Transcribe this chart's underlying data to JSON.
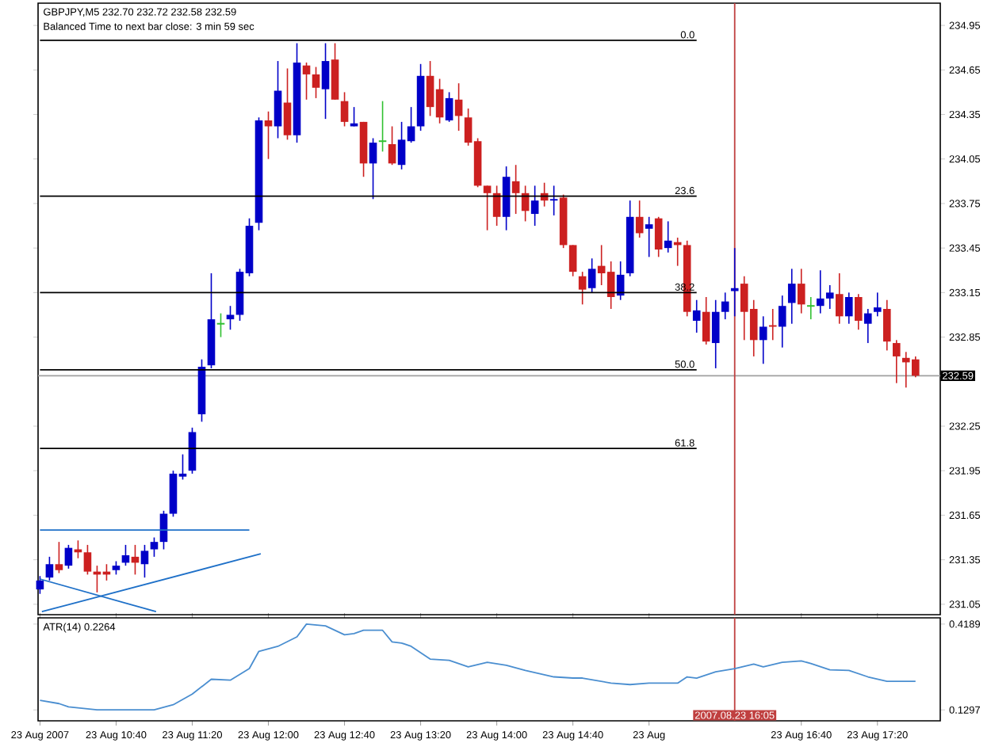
{
  "chart_data": [
    {
      "type": "candlestick",
      "title": "GBPJPY,M5  232.70 232.72 232.58 232.59",
      "subtitle": "Balanced Time to next bar close: 3 min 59 sec",
      "xlim": [
        "2007-08-23T09:59",
        "2007-08-23T17:53"
      ],
      "ylim": [
        230.98,
        235.1
      ],
      "yticks": [
        234.95,
        234.65,
        234.35,
        234.05,
        233.75,
        233.45,
        233.15,
        232.85,
        232.25,
        231.95,
        231.65,
        231.35,
        231.05
      ],
      "tick_labels": "y",
      "series": [
        {
          "color": "#0000c8",
          "x": [
            "2007-08-23T10:00",
            "2007-08-23T10:05",
            "2007-08-23T10:15",
            "2007-08-23T10:40",
            "2007-08-23T10:45",
            "2007-08-23T10:55",
            "2007-08-23T11:00",
            "2007-08-23T11:05",
            "2007-08-23T11:10",
            "2007-08-23T11:15",
            "2007-08-23T11:20",
            "2007-08-23T11:25",
            "2007-08-23T11:30",
            "2007-08-23T11:40",
            "2007-08-23T11:45",
            "2007-08-23T11:50",
            "2007-08-23T11:55",
            "2007-08-23T12:05",
            "2007-08-23T12:15",
            "2007-08-23T12:30",
            "2007-08-23T12:45",
            "2007-08-23T12:55",
            "2007-08-23T13:10",
            "2007-08-23T13:15",
            "2007-08-23T13:20",
            "2007-08-23T13:35",
            "2007-08-23T14:05",
            "2007-08-23T14:20",
            "2007-08-23T14:30",
            "2007-08-23T14:50",
            "2007-08-23T15:05",
            "2007-08-23T15:10",
            "2007-08-23T15:20",
            "2007-08-23T15:30",
            "2007-08-23T15:45",
            "2007-08-23T15:55",
            "2007-08-23T16:00",
            "2007-08-23T16:05",
            "2007-08-23T16:20",
            "2007-08-23T16:30",
            "2007-08-23T16:35",
            "2007-08-23T16:50",
            "2007-08-23T16:55",
            "2007-08-23T17:05",
            "2007-08-23T17:15",
            "2007-08-23T17:20"
          ],
          "ohlc": [
            [
              231.15,
              231.24,
              231.12,
              231.21
            ],
            [
              231.23,
              231.37,
              231.21,
              231.32
            ],
            [
              231.31,
              231.45,
              231.29,
              231.43
            ],
            [
              231.28,
              231.34,
              231.25,
              231.31
            ],
            [
              231.33,
              231.45,
              231.31,
              231.38
            ],
            [
              231.32,
              231.45,
              231.23,
              231.41
            ],
            [
              231.42,
              231.5,
              231.37,
              231.47
            ],
            [
              231.47,
              231.68,
              231.42,
              231.66
            ],
            [
              231.66,
              231.95,
              231.64,
              231.93
            ],
            [
              231.91,
              232.06,
              231.89,
              231.93
            ],
            [
              231.95,
              232.24,
              231.93,
              232.21
            ],
            [
              232.33,
              232.7,
              232.28,
              232.65
            ],
            [
              232.66,
              233.28,
              232.64,
              232.97
            ],
            [
              232.97,
              233.06,
              232.9,
              233.0
            ],
            [
              233.0,
              233.31,
              232.96,
              233.29
            ],
            [
              233.28,
              233.65,
              233.26,
              233.6
            ],
            [
              233.62,
              234.33,
              233.57,
              234.31
            ],
            [
              234.27,
              234.71,
              234.19,
              234.51
            ],
            [
              234.21,
              234.83,
              234.16,
              234.7
            ],
            [
              234.52,
              234.83,
              234.32,
              234.71
            ],
            [
              234.27,
              234.4,
              234.27,
              234.29
            ],
            [
              234.02,
              234.19,
              233.78,
              234.16
            ],
            [
              234.01,
              234.3,
              233.98,
              234.18
            ],
            [
              234.17,
              234.4,
              234.16,
              234.27
            ],
            [
              234.27,
              234.69,
              234.24,
              234.61
            ],
            [
              234.31,
              234.5,
              234.3,
              234.46
            ],
            [
              233.66,
              234.0,
              233.57,
              233.93
            ],
            [
              233.68,
              233.87,
              233.6,
              233.77
            ],
            [
              233.77,
              233.87,
              233.67,
              233.78
            ],
            [
              233.18,
              233.38,
              233.15,
              233.31
            ],
            [
              233.13,
              233.36,
              233.1,
              233.27
            ],
            [
              233.28,
              233.77,
              233.26,
              233.66
            ],
            [
              233.58,
              233.66,
              233.39,
              233.61
            ],
            [
              233.45,
              233.63,
              233.42,
              233.5
            ],
            [
              232.96,
              233.1,
              232.88,
              233.03
            ],
            [
              232.81,
              233.1,
              232.64,
              233.02
            ],
            [
              233.02,
              233.15,
              232.97,
              233.09
            ],
            [
              233.16,
              233.45,
              232.99,
              233.18
            ],
            [
              232.83,
              232.99,
              232.67,
              232.92
            ],
            [
              232.92,
              233.13,
              232.78,
              233.06
            ],
            [
              233.08,
              233.31,
              232.94,
              233.21
            ],
            [
              233.06,
              233.3,
              233.01,
              233.11
            ],
            [
              233.11,
              233.2,
              233.04,
              233.15
            ],
            [
              232.99,
              233.15,
              232.94,
              233.12
            ],
            [
              232.94,
              233.04,
              232.81,
              233.01
            ],
            [
              233.02,
              233.15,
              232.99,
              233.05
            ]
          ]
        },
        {
          "color": "#cc2020",
          "x": [
            "2007-08-23T10:10",
            "2007-08-23T10:20",
            "2007-08-23T10:25",
            "2007-08-23T10:30",
            "2007-08-23T10:35",
            "2007-08-23T10:50",
            "2007-08-23T12:00",
            "2007-08-23T12:10",
            "2007-08-23T12:20",
            "2007-08-23T12:25",
            "2007-08-23T12:35",
            "2007-08-23T12:40",
            "2007-08-23T12:50",
            "2007-08-23T13:05",
            "2007-08-23T13:25",
            "2007-08-23T13:30",
            "2007-08-23T13:40",
            "2007-08-23T13:45",
            "2007-08-23T13:50",
            "2007-08-23T13:55",
            "2007-08-23T14:00",
            "2007-08-23T14:10",
            "2007-08-23T14:15",
            "2007-08-23T14:25",
            "2007-08-23T14:35",
            "2007-08-23T14:40",
            "2007-08-23T14:45",
            "2007-08-23T14:55",
            "2007-08-23T15:00",
            "2007-08-23T15:15",
            "2007-08-23T15:25",
            "2007-08-23T15:35",
            "2007-08-23T15:40",
            "2007-08-23T15:50",
            "2007-08-23T16:10",
            "2007-08-23T16:15",
            "2007-08-23T16:25",
            "2007-08-23T16:40",
            "2007-08-23T17:00",
            "2007-08-23T17:10",
            "2007-08-23T17:25",
            "2007-08-23T17:30",
            "2007-08-23T17:35",
            "2007-08-23T17:40"
          ],
          "ohlc": [
            [
              231.32,
              231.47,
              231.26,
              231.28
            ],
            [
              231.42,
              231.48,
              231.36,
              231.4
            ],
            [
              231.4,
              231.45,
              231.25,
              231.27
            ],
            [
              231.27,
              231.31,
              231.13,
              231.25
            ],
            [
              231.27,
              231.32,
              231.21,
              231.25
            ],
            [
              231.37,
              231.45,
              231.25,
              231.33
            ],
            [
              234.31,
              234.37,
              234.05,
              234.27
            ],
            [
              234.43,
              234.66,
              234.18,
              234.21
            ],
            [
              234.68,
              234.7,
              234.45,
              234.62
            ],
            [
              234.62,
              234.67,
              234.46,
              234.53
            ],
            [
              234.72,
              234.83,
              234.45,
              234.45
            ],
            [
              234.44,
              234.5,
              234.27,
              234.3
            ],
            [
              234.3,
              234.3,
              233.93,
              234.02
            ],
            [
              234.15,
              234.27,
              234.01,
              234.02
            ],
            [
              234.61,
              234.71,
              234.34,
              234.4
            ],
            [
              234.52,
              234.59,
              234.29,
              234.33
            ],
            [
              234.45,
              234.56,
              234.24,
              234.34
            ],
            [
              234.33,
              234.39,
              234.14,
              234.16
            ],
            [
              234.17,
              234.19,
              233.86,
              233.87
            ],
            [
              233.87,
              233.87,
              233.57,
              233.82
            ],
            [
              233.82,
              233.87,
              233.6,
              233.66
            ],
            [
              233.9,
              234.01,
              233.68,
              233.82
            ],
            [
              233.82,
              233.87,
              233.63,
              233.7
            ],
            [
              233.82,
              233.89,
              233.73,
              233.77
            ],
            [
              233.79,
              233.81,
              233.45,
              233.47
            ],
            [
              233.47,
              233.47,
              233.26,
              233.29
            ],
            [
              233.26,
              233.29,
              233.07,
              233.17
            ],
            [
              233.33,
              233.47,
              233.2,
              233.28
            ],
            [
              233.29,
              233.36,
              233.04,
              233.12
            ],
            [
              233.66,
              233.77,
              233.52,
              233.55
            ],
            [
              233.65,
              233.66,
              233.39,
              233.44
            ],
            [
              233.49,
              233.52,
              233.33,
              233.47
            ],
            [
              233.47,
              233.5,
              232.99,
              233.02
            ],
            [
              233.02,
              233.12,
              232.8,
              232.82
            ],
            [
              233.21,
              233.26,
              232.83,
              233.02
            ],
            [
              233.04,
              233.1,
              232.72,
              232.83
            ],
            [
              232.93,
              233.04,
              232.83,
              232.92
            ],
            [
              233.21,
              233.31,
              233.01,
              233.07
            ],
            [
              233.14,
              233.28,
              232.94,
              232.99
            ],
            [
              233.12,
              233.14,
              232.9,
              232.96
            ],
            [
              233.04,
              233.1,
              232.76,
              232.82
            ],
            [
              232.81,
              232.83,
              232.54,
              232.72
            ],
            [
              232.71,
              232.75,
              232.51,
              232.68
            ],
            [
              232.7,
              232.72,
              232.58,
              232.59
            ]
          ]
        },
        {
          "color": "#30c030",
          "x": [
            "2007-08-23T11:35",
            "2007-08-23T13:00",
            "2007-08-23T16:45"
          ],
          "ohlc": [
            [
              232.94,
              233.01,
              232.85,
              232.94
            ],
            [
              234.17,
              234.44,
              234.1,
              234.17
            ],
            [
              233.06,
              233.12,
              232.97,
              233.06
            ]
          ]
        },
        {
          "type": "line",
          "color": "#000000",
          "x": [
            "2007-08-23T10:00",
            "2007-08-23T15:45"
          ],
          "values": [
            234.85,
            234.85
          ]
        },
        {
          "type": "line",
          "color": "#000000",
          "x": [
            "2007-08-23T10:00",
            "2007-08-23T15:45"
          ],
          "values": [
            233.8,
            233.8
          ]
        },
        {
          "type": "line",
          "color": "#000000",
          "x": [
            "2007-08-23T10:00",
            "2007-08-23T15:45"
          ],
          "values": [
            233.15,
            233.15
          ]
        },
        {
          "type": "line",
          "color": "#000000",
          "x": [
            "2007-08-23T10:00",
            "2007-08-23T15:45"
          ],
          "values": [
            232.63,
            232.63
          ]
        },
        {
          "type": "line",
          "color": "#000000",
          "x": [
            "2007-08-23T10:00",
            "2007-08-23T15:45"
          ],
          "values": [
            232.1,
            232.1
          ]
        },
        {
          "type": "line",
          "color": "#1e70c8",
          "x": [
            "2007-08-23T10:00",
            "2007-08-23T11:50"
          ],
          "values": [
            231.55,
            231.55
          ]
        },
        {
          "type": "line",
          "color": "#1e70c8",
          "x": [
            "2007-08-23T10:00",
            "2007-08-23T11:01"
          ],
          "values": [
            231.22,
            231.0
          ]
        },
        {
          "type": "line",
          "color": "#1e70c8",
          "x": [
            "2007-08-23T10:01",
            "2007-08-23T11:56"
          ],
          "values": [
            231.0,
            231.39
          ]
        }
      ],
      "ref_lines": [
        {
          "axis": "y",
          "value": 232.59,
          "label": "232.59",
          "color": "#a0a0a0"
        },
        {
          "axis": "x",
          "value": "2007-08-23T16:05",
          "color": "#c04040"
        }
      ],
      "annotations": [
        {
          "text": "0.0",
          "x": "2007-08-23T15:45",
          "y": 234.85
        },
        {
          "text": "23.6",
          "x": "2007-08-23T15:45",
          "y": 233.8
        },
        {
          "text": "38.2",
          "x": "2007-08-23T15:45",
          "y": 233.15
        },
        {
          "text": "50.0",
          "x": "2007-08-23T15:45",
          "y": 232.63
        },
        {
          "text": "61.8",
          "x": "2007-08-23T15:45",
          "y": 232.1
        }
      ]
    },
    {
      "type": "line",
      "title": "ATR(14) 0.2264",
      "xlim": [
        "2007-08-23T09:59",
        "2007-08-23T17:53"
      ],
      "xticks": [
        {
          "value": "2007-08-23T10:00",
          "label": "23 Aug 2007"
        },
        {
          "value": "2007-08-23T10:40",
          "label": "23 Aug 10:40"
        },
        {
          "value": "2007-08-23T11:20",
          "label": "23 Aug 11:20"
        },
        {
          "value": "2007-08-23T12:00",
          "label": "23 Aug 12:00"
        },
        {
          "value": "2007-08-23T12:40",
          "label": "23 Aug 12:40"
        },
        {
          "value": "2007-08-23T13:20",
          "label": "23 Aug 13:20"
        },
        {
          "value": "2007-08-23T14:00",
          "label": "23 Aug 14:00"
        },
        {
          "value": "2007-08-23T14:40",
          "label": "23 Aug 14:40"
        },
        {
          "value": "2007-08-23T15:20",
          "label": "23 Aug"
        },
        {
          "value": "2007-08-23T16:40",
          "label": "23 Aug 16:40"
        },
        {
          "value": "2007-08-23T17:20",
          "label": "23 Aug 17:20"
        }
      ],
      "ylim": [
        0.093,
        0.44
      ],
      "yticks": [
        0.4189,
        0.1297
      ],
      "series": [
        {
          "color": "#4a8ed0",
          "x": [
            "2007-08-23T10:00",
            "2007-08-23T10:10",
            "2007-08-23T10:15",
            "2007-08-23T10:30",
            "2007-08-23T10:45",
            "2007-08-23T11:00",
            "2007-08-23T11:10",
            "2007-08-23T11:20",
            "2007-08-23T11:30",
            "2007-08-23T11:40",
            "2007-08-23T11:50",
            "2007-08-23T11:55",
            "2007-08-23T12:05",
            "2007-08-23T12:15",
            "2007-08-23T12:20",
            "2007-08-23T12:30",
            "2007-08-23T12:40",
            "2007-08-23T12:45",
            "2007-08-23T12:50",
            "2007-08-23T13:00",
            "2007-08-23T13:05",
            "2007-08-23T13:10",
            "2007-08-23T13:15",
            "2007-08-23T13:25",
            "2007-08-23T13:35",
            "2007-08-23T13:45",
            "2007-08-23T13:55",
            "2007-08-23T14:05",
            "2007-08-23T14:15",
            "2007-08-23T14:30",
            "2007-08-23T14:40",
            "2007-08-23T14:45",
            "2007-08-23T15:00",
            "2007-08-23T15:10",
            "2007-08-23T15:20",
            "2007-08-23T15:35",
            "2007-08-23T15:40",
            "2007-08-23T15:45",
            "2007-08-23T15:55",
            "2007-08-23T16:05",
            "2007-08-23T16:15",
            "2007-08-23T16:20",
            "2007-08-23T16:30",
            "2007-08-23T16:40",
            "2007-08-23T16:45",
            "2007-08-23T16:55",
            "2007-08-23T17:05",
            "2007-08-23T17:15",
            "2007-08-23T17:25",
            "2007-08-23T17:30",
            "2007-08-23T17:40"
          ],
          "values": [
            0.162,
            0.151,
            0.14,
            0.13,
            0.13,
            0.13,
            0.147,
            0.183,
            0.233,
            0.23,
            0.269,
            0.327,
            0.344,
            0.376,
            0.419,
            0.413,
            0.383,
            0.387,
            0.398,
            0.398,
            0.359,
            0.355,
            0.344,
            0.301,
            0.297,
            0.275,
            0.29,
            0.28,
            0.263,
            0.241,
            0.237,
            0.237,
            0.22,
            0.215,
            0.22,
            0.22,
            0.241,
            0.237,
            0.258,
            0.269,
            0.284,
            0.275,
            0.29,
            0.295,
            0.286,
            0.265,
            0.263,
            0.241,
            0.226,
            0.226,
            0.226
          ]
        }
      ],
      "ref_lines": [
        {
          "axis": "x",
          "value": "2007-08-23T16:05",
          "label": "2007.08.23 16:05",
          "color": "#c04040"
        }
      ]
    }
  ]
}
